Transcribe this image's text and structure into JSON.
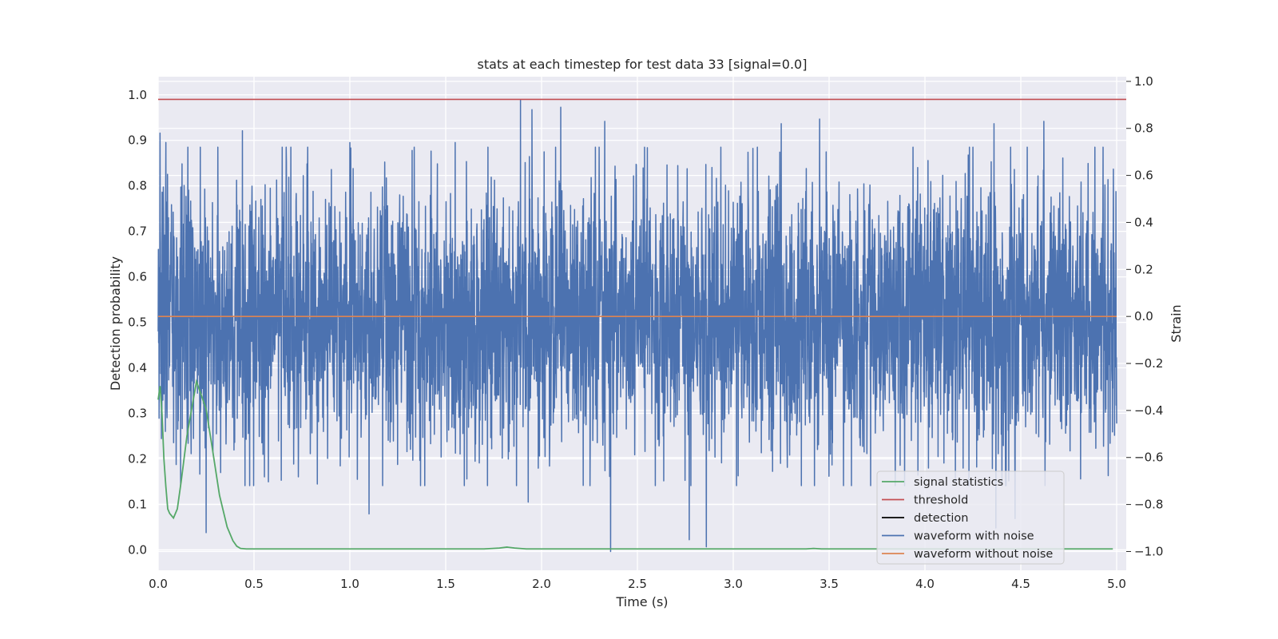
{
  "chart_data": {
    "type": "line",
    "title": "stats at each timestep for test data 33 [signal=0.0]",
    "xlabel": "Time (s)",
    "ylabel_left": "Detection probability",
    "ylabel_right": "Strain",
    "xlim": [
      0.0,
      5.05
    ],
    "ylim_left": [
      -0.045,
      1.04
    ],
    "ylim_right": [
      -1.08,
      1.02
    ],
    "x_ticks": [
      0.0,
      0.5,
      1.0,
      1.5,
      2.0,
      2.5,
      3.0,
      3.5,
      4.0,
      4.5,
      5.0
    ],
    "x_tick_labels": [
      "0.0",
      "0.5",
      "1.0",
      "1.5",
      "2.0",
      "2.5",
      "3.0",
      "3.5",
      "4.0",
      "4.5",
      "5.0"
    ],
    "y_left_ticks": [
      0.0,
      0.1,
      0.2,
      0.3,
      0.4,
      0.5,
      0.6,
      0.7,
      0.8,
      0.9,
      1.0
    ],
    "y_left_tick_labels": [
      "0.0",
      "0.1",
      "0.2",
      "0.3",
      "0.4",
      "0.5",
      "0.6",
      "0.7",
      "0.8",
      "0.9",
      "1.0"
    ],
    "y_right_ticks": [
      -1.0,
      -0.8,
      -0.6,
      -0.4,
      -0.2,
      0.0,
      0.2,
      0.4,
      0.6,
      0.8,
      1.0
    ],
    "y_right_tick_labels": [
      "−1.0",
      "−0.8",
      "−0.6",
      "−0.4",
      "−0.2",
      "0.0",
      "0.2",
      "0.4",
      "0.6",
      "0.8",
      "1.0"
    ],
    "grid": true,
    "legend_position": "bottom-right",
    "series": [
      {
        "name": "signal statistics",
        "axis": "left",
        "color": "#55a868",
        "x": [
          0.0,
          0.01,
          0.02,
          0.03,
          0.04,
          0.05,
          0.06,
          0.08,
          0.1,
          0.12,
          0.15,
          0.2,
          0.25,
          0.28,
          0.32,
          0.36,
          0.39,
          0.41,
          0.43,
          0.46,
          0.5,
          1.0,
          1.5,
          1.7,
          1.78,
          1.82,
          1.86,
          1.92,
          2.0,
          2.5,
          3.0,
          3.38,
          3.42,
          3.46,
          3.6,
          4.0,
          4.5,
          4.98
        ],
        "y": [
          0.33,
          0.36,
          0.3,
          0.2,
          0.14,
          0.09,
          0.08,
          0.07,
          0.09,
          0.15,
          0.25,
          0.37,
          0.31,
          0.23,
          0.12,
          0.05,
          0.02,
          0.008,
          0.003,
          0.002,
          0.002,
          0.002,
          0.002,
          0.002,
          0.004,
          0.006,
          0.004,
          0.002,
          0.002,
          0.002,
          0.002,
          0.002,
          0.003,
          0.002,
          0.002,
          0.002,
          0.002,
          0.002
        ]
      },
      {
        "name": "threshold",
        "axis": "left",
        "color": "#c44e52",
        "x": [
          0.0,
          5.05
        ],
        "y": [
          0.99,
          0.99
        ]
      },
      {
        "name": "detection",
        "axis": "left",
        "color": "#000000",
        "x": [],
        "y": []
      },
      {
        "name": "waveform with noise",
        "axis": "right",
        "color": "#4c72b0",
        "x_range": [
          0.0,
          5.0
        ],
        "n_points": 4096,
        "amplitude_std": 0.28,
        "peaks": [
          {
            "x": 0.01,
            "y": 0.78
          },
          {
            "x": 0.04,
            "y": 0.74
          },
          {
            "x": 0.22,
            "y": 0.72
          },
          {
            "x": 0.44,
            "y": 0.79
          },
          {
            "x": 1.0,
            "y": 0.74
          },
          {
            "x": 1.55,
            "y": 0.74
          },
          {
            "x": 1.89,
            "y": 0.92
          },
          {
            "x": 1.95,
            "y": 0.88
          },
          {
            "x": 2.1,
            "y": 0.89
          },
          {
            "x": 2.33,
            "y": 0.83
          },
          {
            "x": 2.77,
            "y": 0.86
          },
          {
            "x": 3.25,
            "y": 0.82
          },
          {
            "x": 3.45,
            "y": 0.84
          },
          {
            "x": 4.36,
            "y": 0.82
          },
          {
            "x": 4.62,
            "y": 0.83
          }
        ],
        "troughs": [
          {
            "x": 0.25,
            "y": -0.92
          },
          {
            "x": 1.1,
            "y": -0.84
          },
          {
            "x": 1.93,
            "y": -0.79
          },
          {
            "x": 2.36,
            "y": -1.0
          },
          {
            "x": 2.77,
            "y": -0.95
          },
          {
            "x": 2.86,
            "y": -0.98
          },
          {
            "x": 4.37,
            "y": -0.9
          },
          {
            "x": 4.47,
            "y": -0.86
          }
        ]
      },
      {
        "name": "waveform without noise",
        "axis": "right",
        "color": "#dd8452",
        "x": [
          0.0,
          5.0
        ],
        "y": [
          0.0,
          0.0
        ]
      }
    ]
  }
}
